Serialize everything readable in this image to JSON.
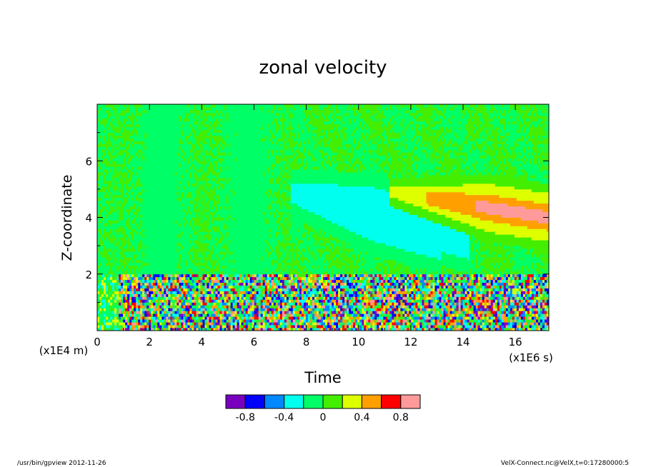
{
  "chart_data": {
    "type": "heatmap",
    "title": "zonal velocity",
    "xlabel": "Time",
    "ylabel": "Z-coordinate",
    "x_unit": "(x1E6 s)",
    "y_unit": "(x1E4 m)",
    "xlim": [
      0,
      17.28
    ],
    "ylim": [
      0,
      8
    ],
    "x_ticks": [
      0,
      2,
      4,
      6,
      8,
      10,
      12,
      14,
      16
    ],
    "y_ticks": [
      2,
      4,
      6
    ],
    "colorbar": {
      "levels": [
        -1.0,
        -0.8,
        -0.6,
        -0.4,
        -0.2,
        0,
        0.2,
        0.4,
        0.6,
        0.8,
        1.0
      ],
      "colors": [
        "#7a00c0",
        "#0000ff",
        "#0088ff",
        "#00ffee",
        "#00ff66",
        "#44ee00",
        "#ddff00",
        "#ffa000",
        "#ff0000",
        "#ff9a9a"
      ],
      "tick_labels": [
        "-0.8",
        "-0.4",
        "0",
        "0.4",
        "0.8"
      ],
      "tick_values": [
        -0.8,
        -0.4,
        0,
        0.4,
        0.8
      ]
    },
    "features": [
      {
        "x_range": [
          0,
          17.28
        ],
        "y_range": [
          0,
          2
        ],
        "value_range": [
          -1.0,
          1.0
        ],
        "kind": "noisy-oscillation"
      },
      {
        "x_range": [
          0,
          7.4
        ],
        "y_range": [
          2,
          8
        ],
        "value": 0.0,
        "kind": "near-zero"
      },
      {
        "x_range": [
          7.4,
          14.2
        ],
        "y_center_from": 4.9,
        "y_center_to": 3.2,
        "value": -0.3,
        "kind": "negative-band"
      },
      {
        "x_range": [
          11.2,
          17.28
        ],
        "y_center_from": 4.9,
        "y_center_to": 4.0,
        "value": 0.5,
        "kind": "positive-band"
      },
      {
        "x_range": [
          14.2,
          17.28
        ],
        "y_center_from": 4.4,
        "y_center_to": 4.0,
        "value": 0.85,
        "kind": "max-core"
      }
    ]
  },
  "footer": {
    "left": "/usr/bin/gpview   2012-11-26",
    "right": "VelX-Connect.nc@VelX,t=0:17280000:5"
  }
}
